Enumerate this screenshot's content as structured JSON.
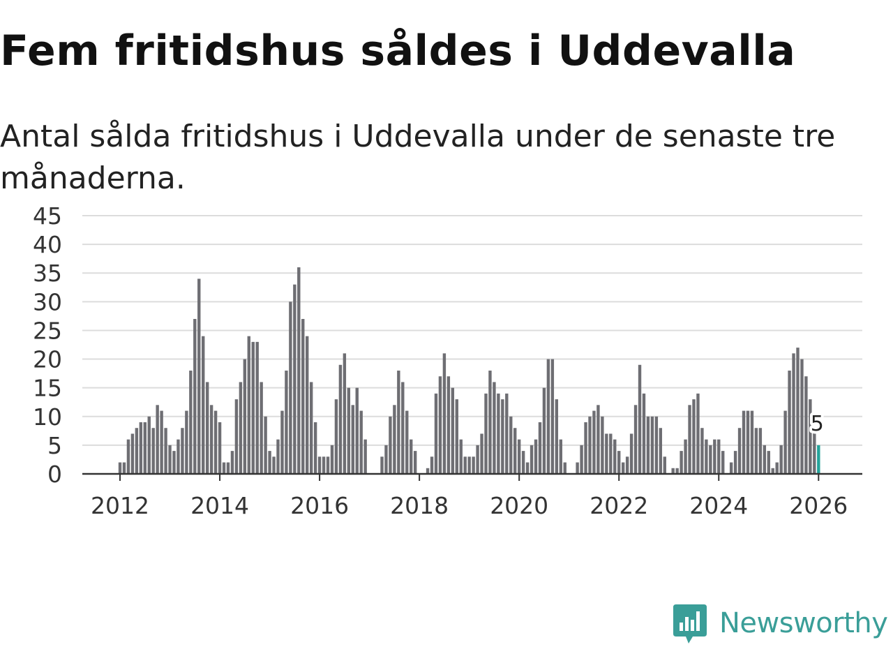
{
  "title": "Fem fritidshus såldes i Uddevalla",
  "subtitle": "Antal sålda fritidshus i Uddevalla under de senaste tre månaderna.",
  "brand": {
    "name": "Newsworthy",
    "icon": "newsworthy-logo-icon",
    "color": "#3a9e98"
  },
  "colors": {
    "bar": "#6e6e73",
    "highlight": "#23a39a",
    "grid": "#dcdcdc",
    "axis": "#333333"
  },
  "chart_data": {
    "type": "bar",
    "title": "Fem fritidshus såldes i Uddevalla",
    "xlabel": "",
    "ylabel": "",
    "ylim": [
      0,
      45
    ],
    "yticks": [
      "0",
      "5",
      "10",
      "15",
      "20",
      "25",
      "30",
      "35",
      "40",
      "45"
    ],
    "xticks": [
      {
        "label": "2012",
        "index": 12
      },
      {
        "label": "2014",
        "index": 36
      },
      {
        "label": "2016",
        "index": 60
      },
      {
        "label": "2018",
        "index": 84
      },
      {
        "label": "2020",
        "index": 108
      },
      {
        "label": "2022",
        "index": 132
      },
      {
        "label": "2024",
        "index": 156
      },
      {
        "label": "2026",
        "index": 180
      }
    ],
    "period": "monthly, 2011-01 to 2026-01",
    "values": [
      0,
      0,
      0,
      0,
      0,
      0,
      0,
      0,
      0,
      0,
      0,
      0,
      2,
      2,
      6,
      7,
      8,
      9,
      9,
      10,
      8,
      12,
      11,
      8,
      5,
      4,
      6,
      8,
      11,
      18,
      27,
      34,
      24,
      16,
      12,
      11,
      9,
      2,
      2,
      4,
      13,
      16,
      20,
      24,
      23,
      23,
      16,
      10,
      4,
      3,
      6,
      11,
      18,
      30,
      33,
      36,
      27,
      24,
      16,
      9,
      3,
      3,
      3,
      5,
      13,
      19,
      21,
      15,
      12,
      15,
      11,
      6,
      0,
      0,
      0,
      3,
      5,
      10,
      12,
      18,
      16,
      11,
      6,
      4,
      0,
      0,
      1,
      3,
      14,
      17,
      21,
      17,
      15,
      13,
      6,
      3,
      3,
      3,
      5,
      7,
      14,
      18,
      16,
      14,
      13,
      14,
      10,
      8,
      6,
      4,
      2,
      5,
      6,
      9,
      15,
      20,
      20,
      13,
      6,
      2,
      0,
      0,
      2,
      5,
      9,
      10,
      11,
      12,
      10,
      7,
      7,
      6,
      4,
      2,
      3,
      7,
      12,
      19,
      14,
      10,
      10,
      10,
      8,
      3,
      0,
      1,
      1,
      4,
      6,
      12,
      13,
      14,
      8,
      6,
      5,
      6,
      6,
      4,
      0,
      2,
      4,
      8,
      11,
      11,
      11,
      8,
      8,
      5,
      4,
      1,
      2,
      5,
      11,
      18,
      21,
      22,
      20,
      17,
      13,
      8,
      5
    ],
    "highlight": {
      "index": 180,
      "value": 5,
      "label": "5"
    }
  }
}
